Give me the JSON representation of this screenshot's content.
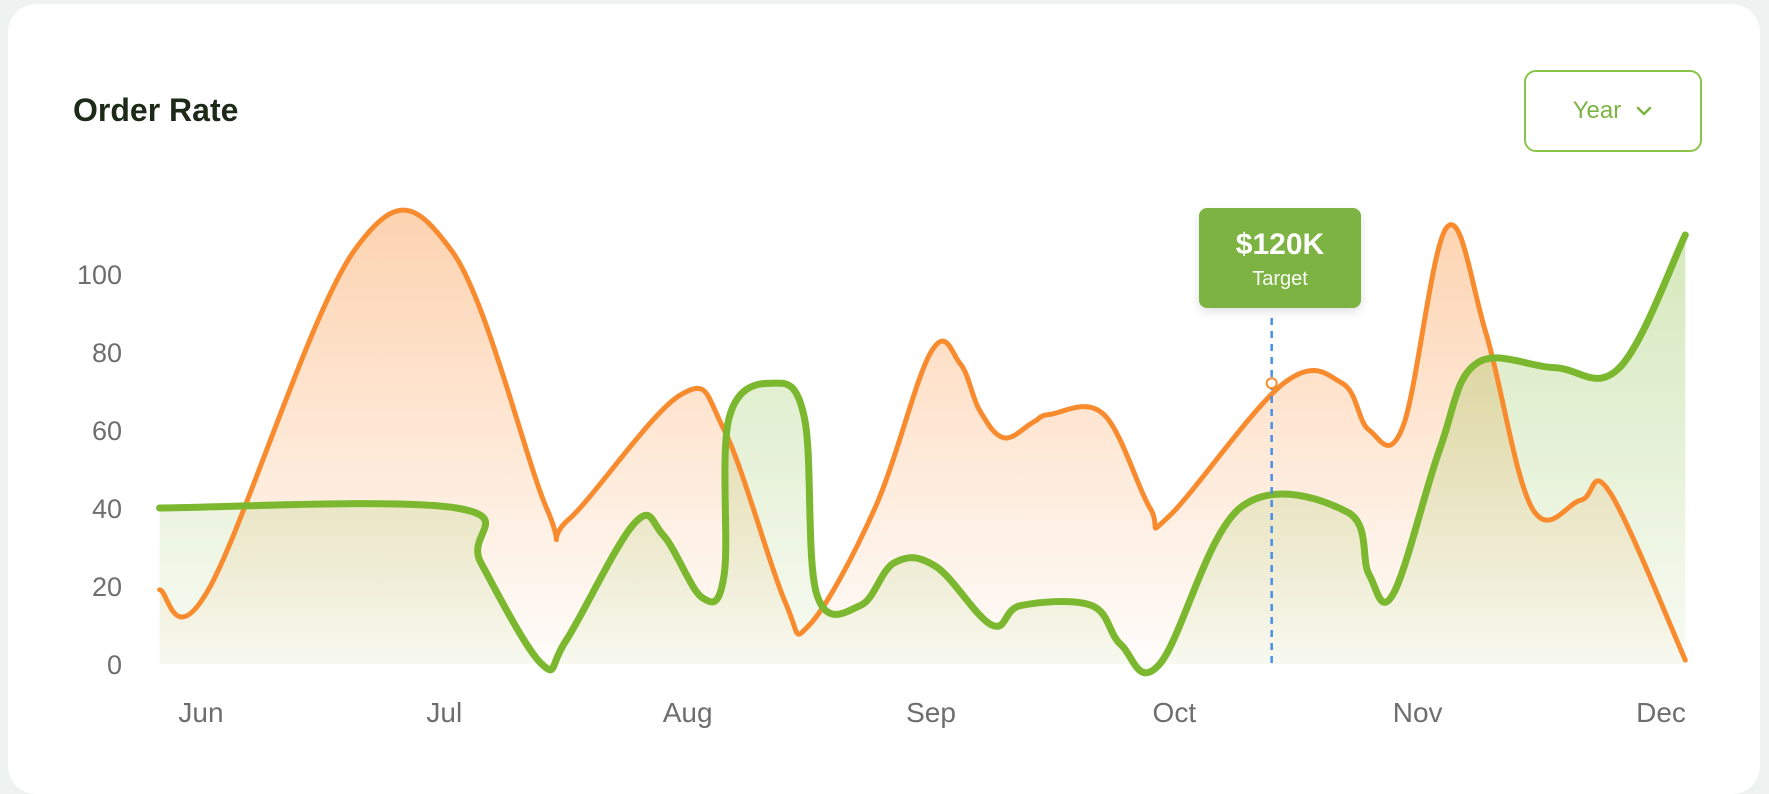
{
  "card": {
    "title": "Order Rate",
    "period_button": {
      "label": "Year",
      "icon": "chevron-down-icon"
    }
  },
  "tooltip": {
    "value": "$120K",
    "label": "Target"
  },
  "colors": {
    "orange": "#f98b2f",
    "green": "#7cb82f",
    "accent": "#7cb342",
    "target_line": "#4a8fe7"
  },
  "chart_data": {
    "type": "area",
    "title": "Order Rate",
    "xlabel": "",
    "ylabel": "",
    "ylim": [
      0,
      100
    ],
    "yticks": [
      0,
      20,
      40,
      60,
      80,
      100
    ],
    "categories": [
      "Jun",
      "Jul",
      "Aug",
      "Sep",
      "Oct",
      "Nov",
      "Dec"
    ],
    "xlim": [
      0,
      6
    ],
    "grid": false,
    "target_marker": {
      "x": 4.4,
      "value": "$120K",
      "label": "Target"
    },
    "series": [
      {
        "color": "#f98b2f",
        "points": [
          [
            -0.17,
            19
          ],
          [
            0.03,
            19
          ],
          [
            0.63,
            106
          ],
          [
            1.03,
            106
          ],
          [
            1.42,
            40
          ],
          [
            1.51,
            37
          ],
          [
            1.97,
            69
          ],
          [
            2.15,
            60
          ],
          [
            2.4,
            16
          ],
          [
            2.5,
            10
          ],
          [
            2.77,
            40
          ],
          [
            3.0,
            80
          ],
          [
            3.12,
            77
          ],
          [
            3.2,
            65
          ],
          [
            3.3,
            58
          ],
          [
            3.42,
            62
          ],
          [
            3.49,
            64
          ],
          [
            3.71,
            64
          ],
          [
            3.9,
            40
          ],
          [
            3.98,
            38
          ],
          [
            4.45,
            72
          ],
          [
            4.69,
            72
          ],
          [
            4.8,
            60
          ],
          [
            4.94,
            61
          ],
          [
            5.12,
            112
          ],
          [
            5.28,
            85
          ],
          [
            5.47,
            40
          ],
          [
            5.67,
            42
          ],
          [
            5.79,
            44
          ],
          [
            6.1,
            1
          ]
        ]
      },
      {
        "color": "#7cb82f",
        "points": [
          [
            -0.17,
            40
          ],
          [
            1.05,
            40
          ],
          [
            1.15,
            26
          ],
          [
            1.4,
            0
          ],
          [
            1.5,
            6
          ],
          [
            1.78,
            36
          ],
          [
            1.9,
            33
          ],
          [
            2.06,
            17
          ],
          [
            2.15,
            23
          ],
          [
            2.17,
            63
          ],
          [
            2.35,
            72
          ],
          [
            2.48,
            63
          ],
          [
            2.53,
            18
          ],
          [
            2.71,
            15
          ],
          [
            2.85,
            26
          ],
          [
            3.02,
            25
          ],
          [
            3.25,
            10
          ],
          [
            3.37,
            15
          ],
          [
            3.66,
            15
          ],
          [
            3.78,
            5
          ],
          [
            3.94,
            0
          ],
          [
            4.27,
            40
          ],
          [
            4.71,
            39
          ],
          [
            4.8,
            23
          ],
          [
            4.9,
            18
          ],
          [
            5.09,
            55
          ],
          [
            5.24,
            77
          ],
          [
            5.56,
            76
          ],
          [
            5.83,
            76
          ],
          [
            6.1,
            110
          ]
        ]
      }
    ]
  }
}
